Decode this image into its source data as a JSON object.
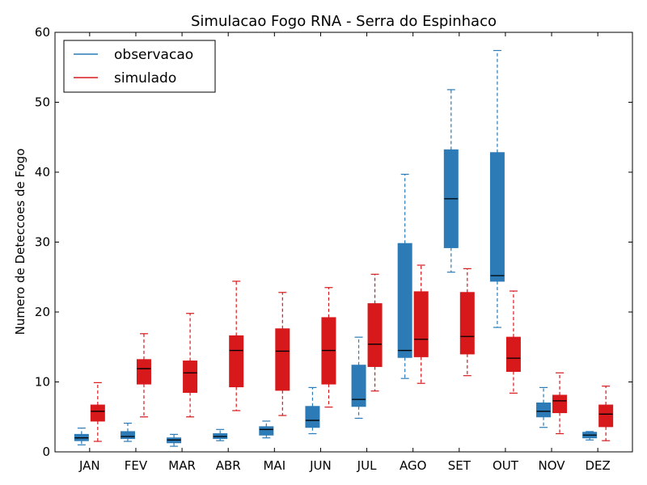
{
  "chart_data": {
    "type": "boxplot",
    "title": "Simulacao Fogo RNA - Serra do Espinhaco",
    "xlabel": "",
    "ylabel": "Numero de Deteccoes de Fogo",
    "ylim": [
      0,
      60
    ],
    "yticks": [
      "0",
      "10",
      "20",
      "30",
      "40",
      "50",
      "60"
    ],
    "categories": [
      "JAN",
      "FEV",
      "MAR",
      "ABR",
      "MAI",
      "JUN",
      "JUL",
      "AGO",
      "SET",
      "OUT",
      "NOV",
      "DEZ"
    ],
    "legend_position": "top-left",
    "grid": false,
    "series": [
      {
        "name": "observacao",
        "color": "#2c7bb6",
        "boxes": [
          {
            "min": 1.0,
            "q1": 1.6,
            "median": 2.0,
            "q3": 2.5,
            "max": 3.4
          },
          {
            "min": 1.5,
            "q1": 1.9,
            "median": 2.2,
            "q3": 2.9,
            "max": 4.1
          },
          {
            "min": 0.8,
            "q1": 1.3,
            "median": 1.7,
            "q3": 2.0,
            "max": 2.5
          },
          {
            "min": 1.6,
            "q1": 1.9,
            "median": 2.2,
            "q3": 2.6,
            "max": 3.2
          },
          {
            "min": 2.0,
            "q1": 2.4,
            "median": 3.2,
            "q3": 3.6,
            "max": 4.4
          },
          {
            "min": 2.6,
            "q1": 3.5,
            "median": 4.5,
            "q3": 6.5,
            "max": 9.2
          },
          {
            "min": 4.8,
            "q1": 6.5,
            "median": 7.5,
            "q3": 12.4,
            "max": 16.4
          },
          {
            "min": 10.5,
            "q1": 13.5,
            "median": 14.5,
            "q3": 29.8,
            "max": 39.7
          },
          {
            "min": 25.7,
            "q1": 29.2,
            "median": 36.2,
            "q3": 43.2,
            "max": 51.8
          },
          {
            "min": 17.8,
            "q1": 24.4,
            "median": 25.2,
            "q3": 42.8,
            "max": 57.4
          },
          {
            "min": 3.5,
            "q1": 5.0,
            "median": 5.8,
            "q3": 7.0,
            "max": 9.2
          },
          {
            "min": 1.7,
            "q1": 2.0,
            "median": 2.4,
            "q3": 2.8,
            "max": 2.9
          }
        ]
      },
      {
        "name": "simulado",
        "color": "#d7191c",
        "boxes": [
          {
            "min": 1.5,
            "q1": 4.4,
            "median": 5.8,
            "q3": 6.7,
            "max": 9.9
          },
          {
            "min": 5.0,
            "q1": 9.7,
            "median": 11.9,
            "q3": 13.2,
            "max": 16.9
          },
          {
            "min": 5.0,
            "q1": 8.5,
            "median": 11.3,
            "q3": 13.0,
            "max": 19.8
          },
          {
            "min": 5.9,
            "q1": 9.3,
            "median": 14.5,
            "q3": 16.6,
            "max": 24.4
          },
          {
            "min": 5.2,
            "q1": 8.8,
            "median": 14.4,
            "q3": 17.6,
            "max": 22.8
          },
          {
            "min": 6.4,
            "q1": 9.7,
            "median": 14.5,
            "q3": 19.2,
            "max": 23.5
          },
          {
            "min": 8.7,
            "q1": 12.2,
            "median": 15.4,
            "q3": 21.2,
            "max": 25.4
          },
          {
            "min": 9.8,
            "q1": 13.6,
            "median": 16.1,
            "q3": 22.9,
            "max": 26.7
          },
          {
            "min": 10.9,
            "q1": 14.0,
            "median": 16.5,
            "q3": 22.8,
            "max": 26.2
          },
          {
            "min": 8.4,
            "q1": 11.5,
            "median": 13.4,
            "q3": 16.4,
            "max": 23.0
          },
          {
            "min": 2.6,
            "q1": 5.6,
            "median": 7.3,
            "q3": 8.1,
            "max": 11.3
          },
          {
            "min": 1.6,
            "q1": 3.6,
            "median": 5.4,
            "q3": 6.7,
            "max": 9.4
          }
        ]
      }
    ]
  }
}
